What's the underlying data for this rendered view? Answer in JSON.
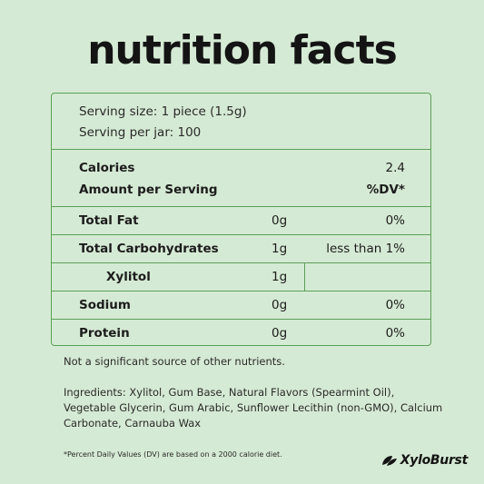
{
  "title": "nutrition facts",
  "serving": {
    "size": "Serving size: 1 piece (1.5g)",
    "per_jar": "Serving per jar: 100"
  },
  "calories": {
    "label": "Calories",
    "value": "2.4",
    "amount_label": "Amount per Serving",
    "dv_label": "%DV*"
  },
  "nutrients": [
    {
      "name": "Total Fat",
      "amount": "0g",
      "dv": "0%"
    },
    {
      "name": "Total Carbohydrates",
      "amount": "1g",
      "dv": "less than 1%"
    },
    {
      "name": "Xylitol",
      "amount": "1g",
      "dv": ""
    },
    {
      "name": "Sodium",
      "amount": "0g",
      "dv": "0%"
    },
    {
      "name": "Protein",
      "amount": "0g",
      "dv": "0%"
    }
  ],
  "note": "Not a significant source of other nutrients.",
  "ingredients": "Ingredients: Xylitol, Gum Base, Natural Flavors (Spearmint Oil), Vegetable Glycerin, Gum Arabic, Sunflower Lecithin (non-GMO), Calcium Carbonate, Carnauba Wax",
  "footnote": "*Percent Daily Values (DV) are based on a 2000 calorie diet.",
  "brand": "XyloBurst",
  "colors": {
    "background": "#d5ead4",
    "border": "#5aa157",
    "text": "#1c1c1c"
  }
}
